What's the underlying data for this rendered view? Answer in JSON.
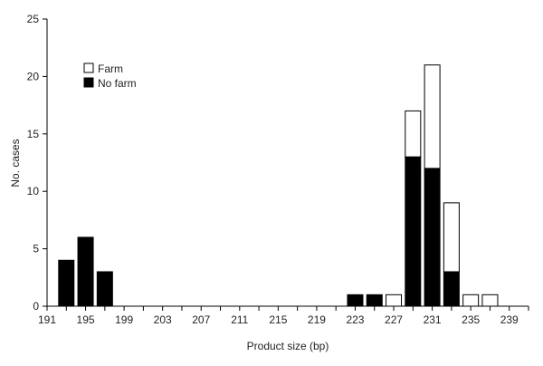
{
  "chart_data": {
    "type": "bar",
    "stacked": true,
    "title": "",
    "xlabel": "Product size (bp)",
    "ylabel": "No. cases",
    "ylim": [
      0,
      25
    ],
    "y_ticks": [
      0,
      5,
      10,
      15,
      20,
      25
    ],
    "xlim": [
      191,
      241
    ],
    "x_ticks": [
      191,
      195,
      199,
      203,
      207,
      211,
      215,
      219,
      223,
      227,
      231,
      235,
      239
    ],
    "x": [
      193,
      195,
      197,
      223,
      225,
      227,
      229,
      231,
      233,
      235,
      237
    ],
    "series": [
      {
        "name": "No farm",
        "color": "#000000",
        "values": [
          4,
          6,
          3,
          1,
          1,
          0,
          13,
          12,
          3,
          0,
          0
        ]
      },
      {
        "name": "Farm",
        "color": "#ffffff",
        "values": [
          0,
          0,
          0,
          0,
          0,
          1,
          4,
          9,
          6,
          1,
          1
        ]
      }
    ],
    "legend": {
      "position": "top-left",
      "items": [
        "Farm",
        "No farm"
      ]
    },
    "grid": false
  }
}
